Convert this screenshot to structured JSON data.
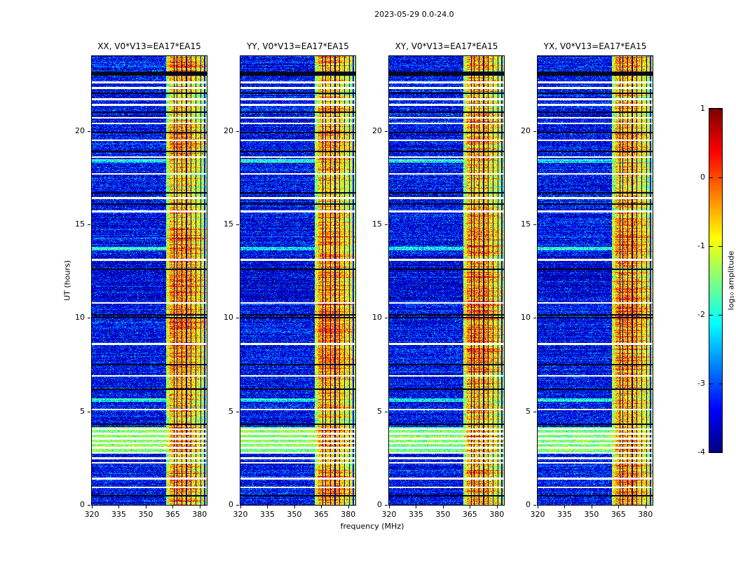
{
  "figure": {
    "title": "2023-05-29 0.0-24.0",
    "xlabel": "frequency (MHz)",
    "ylabel": "UT (hours)",
    "colorbar_label": "log₁₀ amplitude"
  },
  "chart_data": {
    "type": "heatmap",
    "title": "2023-05-29 0.0-24.0",
    "xlabel": "frequency (MHz)",
    "ylabel": "UT (hours)",
    "colormap": "jet",
    "legend_position": "right-colorbar",
    "panels": [
      {
        "title": "XX, V0*V13=EA17*EA15"
      },
      {
        "title": "YY, V0*V13=EA17*EA15"
      },
      {
        "title": "XY, V0*V13=EA17*EA15"
      },
      {
        "title": "YX, V0*V13=EA17*EA15"
      }
    ],
    "x_range_mhz": [
      320,
      384
    ],
    "x_ticks": [
      320,
      335,
      350,
      365,
      380
    ],
    "y_range_hours": [
      0,
      24
    ],
    "y_ticks": [
      0,
      5,
      10,
      15,
      20
    ],
    "colorbar": {
      "label": "log₁₀ amplitude",
      "range": [
        -4,
        1
      ],
      "ticks": [
        1,
        0,
        -1,
        -2,
        -3,
        -4
      ]
    },
    "features": {
      "noise_floor_log10": -3.4,
      "quiet_interval_hours": [
        11.0,
        13.3
      ],
      "quiet_floor_log10": -3.6,
      "hot_interval_hours": [
        2.72,
        4.18
      ],
      "hot_floor_log10": -1.45,
      "bright_rows_hours": [
        18.4,
        13.7,
        5.6
      ],
      "bright_row_log10": -2.05,
      "flagged_white_rows_hours": [
        22.6,
        22.3,
        21.7,
        21.4,
        20.7,
        20.4,
        19.5,
        18.6,
        17.7,
        16.4,
        15.7,
        13.1,
        10.8,
        8.6,
        6.9,
        5.1,
        4.05,
        3.8,
        3.55,
        3.3,
        3.05,
        2.78,
        2.5,
        2.25,
        1.4,
        0.94
      ],
      "white_row_halfwidth_hours": 0.045,
      "black_rows_hours": [
        22.0,
        21.0,
        19.9,
        18.9,
        16.7,
        16.1,
        12.6,
        10.15,
        10.0,
        7.5,
        6.2,
        4.3,
        0.5
      ],
      "black_row_halfwidth_hours": 0.04,
      "thick_black_row": {
        "hour": 23.06,
        "halfwidth_hours": 0.1
      },
      "time_envelope_base": -0.25,
      "time_envelope_gaussians": [
        {
          "center": 9.5,
          "sigma": 3.2,
          "amp": 0.55
        },
        {
          "center": 14.5,
          "sigma": 1.0,
          "amp": 0.3
        },
        {
          "center": 19.6,
          "sigma": 1.0,
          "amp": 0.45
        },
        {
          "center": 0.8,
          "sigma": 1.2,
          "amp": 0.45
        },
        {
          "center": 23.9,
          "sigma": 0.8,
          "amp": 0.4
        }
      ],
      "emission_band": {
        "start_mhz": 361.5,
        "end_mhz": 384,
        "columns": [
          {
            "f0": 361.5,
            "f1": 363.2,
            "v": -1.25
          },
          {
            "f0": 363.2,
            "f1": 365.6,
            "v": -0.55
          },
          {
            "f0": 365.6,
            "f1": 366.2,
            "v": -3.9
          },
          {
            "f0": 366.2,
            "f1": 367.3,
            "v": -0.6
          },
          {
            "f0": 367.3,
            "f1": 367.8,
            "v": -3.9
          },
          {
            "f0": 367.8,
            "f1": 369.8,
            "v": -0.5
          },
          {
            "f0": 369.8,
            "f1": 370.4,
            "v": -3.9
          },
          {
            "f0": 370.4,
            "f1": 372.4,
            "v": -0.6
          },
          {
            "f0": 372.4,
            "f1": 372.9,
            "v": -3.9
          },
          {
            "f0": 372.9,
            "f1": 375.0,
            "v": -0.55
          },
          {
            "f0": 375.0,
            "f1": 375.5,
            "v": -3.9
          },
          {
            "f0": 375.5,
            "f1": 377.6,
            "v": -0.8
          },
          {
            "f0": 377.6,
            "f1": 378.1,
            "v": -3.9
          },
          {
            "f0": 378.1,
            "f1": 380.3,
            "v": -0.95
          },
          {
            "f0": 380.3,
            "f1": 380.8,
            "v": -3.9
          },
          {
            "f0": 380.8,
            "f1": 382.6,
            "v": -1.1
          },
          {
            "f0": 382.6,
            "f1": 383.1,
            "v": -3.4
          },
          {
            "f0": 383.1,
            "f1": 384.0,
            "v": -1.25
          }
        ]
      }
    }
  }
}
